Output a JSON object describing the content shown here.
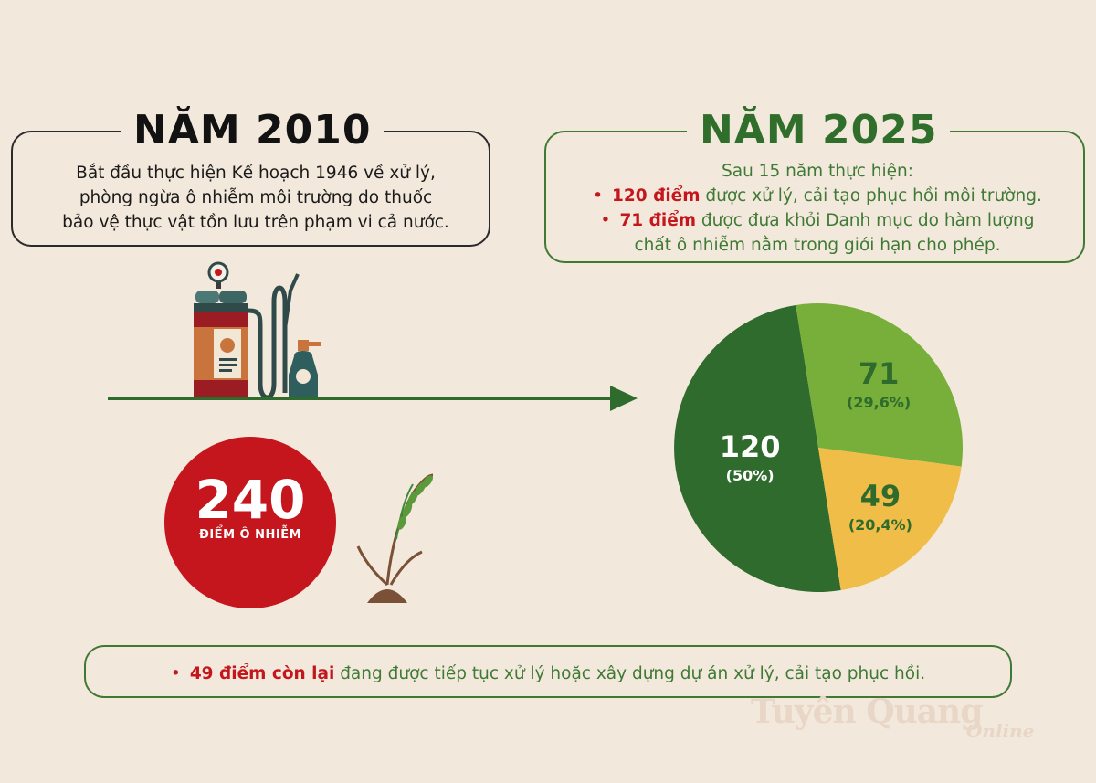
{
  "left": {
    "title": "NĂM 2010",
    "text_lines": [
      "Bắt đầu thực hiện Kế hoạch 1946 về xử lý,",
      "phòng ngừa ô nhiễm môi trường do thuốc",
      "bảo vệ thực vật tồn lưu trên phạm vi cả nước."
    ]
  },
  "right": {
    "title": "NĂM 2025",
    "intro": "Sau 15 năm thực hiện:",
    "bullet1_bold": "120 điểm",
    "bullet1_text": " được xử lý, cải tạo phục hồi môi trường.",
    "bullet2_bold": "71 điểm",
    "bullet2_text": " được đưa khỏi Danh mục do hàm lượng",
    "bullet2_cont": "chất ô nhiễm nằm trong giới hạn cho phép."
  },
  "total": {
    "value": "240",
    "label": "ĐIỂM Ô NHIỄM"
  },
  "bottom": {
    "bold": "49 điểm còn lại",
    "text": " đang được tiếp tục xử lý hoặc xây dựng dự án xử lý, cải tạo phục hồi."
  },
  "watermark": {
    "main": "Tuyên Quang",
    "sub": "Online"
  },
  "colors": {
    "dark_green": "#2f6b2c",
    "light_green": "#78ae3a",
    "yellow": "#efbd48",
    "red": "#c4161c",
    "background": "#f3e8dc"
  },
  "chart_data": {
    "type": "pie",
    "slices": [
      {
        "value": 120,
        "value_label": "120",
        "percent_label": "(50%)",
        "percent": 50.0,
        "color": "#2f6b2c"
      },
      {
        "value": 71,
        "value_label": "71",
        "percent_label": "(29,6%)",
        "percent": 29.6,
        "color": "#78ae3a"
      },
      {
        "value": 49,
        "value_label": "49",
        "percent_label": "(20,4%)",
        "percent": 20.4,
        "color": "#efbd48"
      }
    ]
  }
}
